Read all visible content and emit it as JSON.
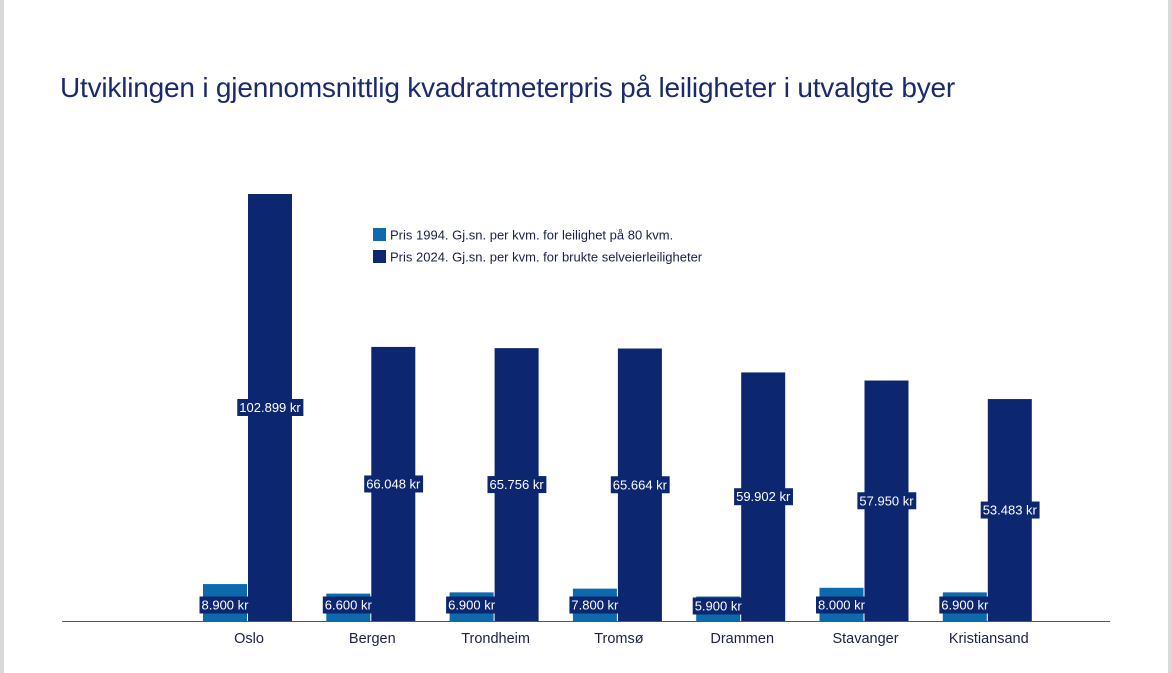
{
  "colors": {
    "title": "#1b2a6e",
    "series_1994": "#0d6aac",
    "series_2024": "#0c2670",
    "label_bg": "#0c2670",
    "text": "#1b1f4a",
    "axis": "#555555"
  },
  "chart_data": {
    "type": "bar",
    "title": "Utviklingen i gjennomsnittlig kvadratmeterpris på leiligheter i utvalgte byer",
    "categories": [
      "Oslo",
      "Bergen",
      "Trondheim",
      "Tromsø",
      "Drammen",
      "Stavanger",
      "Kristiansand"
    ],
    "series": [
      {
        "name": "Pris 1994. Gj.sn. per kvm. for leilighet på 80 kvm.",
        "values": [
          8900,
          6600,
          6900,
          7800,
          5900,
          8000,
          6900
        ],
        "labels": [
          "8.900 kr",
          "6.600 kr",
          "6.900 kr",
          "7.800 kr",
          "5.900 kr",
          "8.000 kr",
          "6.900 kr"
        ]
      },
      {
        "name": "Pris 2024. Gj.sn. per kvm. for brukte selveierleiligheter",
        "values": [
          102899,
          66048,
          65756,
          65664,
          59902,
          57950,
          53483
        ],
        "labels": [
          "102.899 kr",
          "66.048 kr",
          "65.756 kr",
          "65.664 kr",
          "59.902 kr",
          "57.950 kr",
          "53.483 kr"
        ]
      }
    ],
    "ylim": [
      0,
      105000
    ],
    "grid": false,
    "legend": "top-center"
  }
}
